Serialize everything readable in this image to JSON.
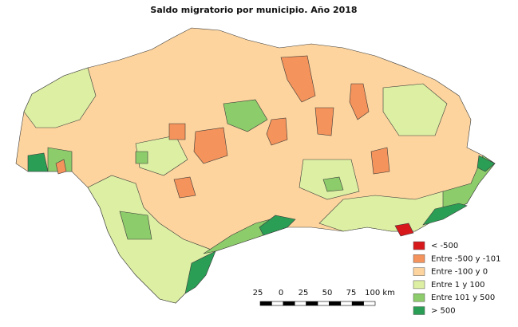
{
  "title": "Saldo migratorio por municipio. Año 2018",
  "legend": {
    "items": [
      {
        "label": "< -500",
        "color": "#d7191c"
      },
      {
        "label": "Entre -500 y -101",
        "color": "#f4935b"
      },
      {
        "label": "Entre -100 y 0",
        "color": "#fdd49e"
      },
      {
        "label": "Entre 1 y 100",
        "color": "#dcefa3"
      },
      {
        "label": "Entre 101 y 500",
        "color": "#8dcc6b"
      },
      {
        "label": "> 500",
        "color": "#2b9e55"
      }
    ]
  },
  "scale_bar": {
    "labels": [
      "25",
      "0",
      "25",
      "50",
      "75",
      "100 km"
    ]
  }
}
